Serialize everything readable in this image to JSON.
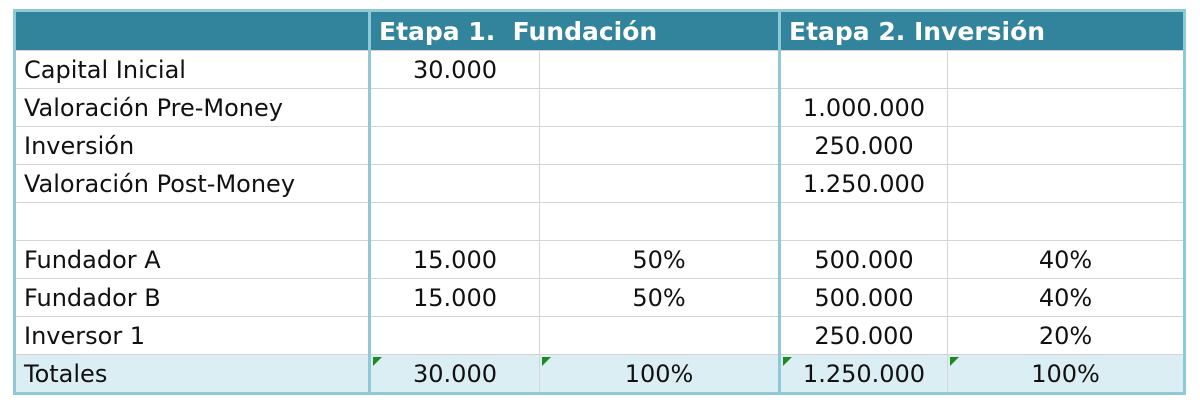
{
  "header": {
    "stage1": "Etapa 1.  Fundación",
    "stage2": "Etapa 2. Inversión"
  },
  "table": {
    "rows": [
      [
        "Capital Inicial",
        "30.000",
        null,
        null,
        null
      ],
      [
        "Valoración Pre-Money",
        null,
        null,
        "1.000.000",
        null
      ],
      [
        "Inversión",
        null,
        null,
        "250.000",
        null
      ],
      [
        "Valoración Post-Money",
        null,
        null,
        "1.250.000",
        null
      ],
      [
        null,
        null,
        null,
        null,
        null
      ],
      [
        "Fundador A",
        "15.000",
        "50%",
        "500.000",
        "40%"
      ],
      [
        "Fundador B",
        "15.000",
        "50%",
        "500.000",
        "40%"
      ],
      [
        "Inversor 1",
        null,
        null,
        "250.000",
        "20%"
      ],
      [
        "Totales",
        "30.000",
        "100%",
        "1.250.000",
        "100%"
      ]
    ]
  }
}
